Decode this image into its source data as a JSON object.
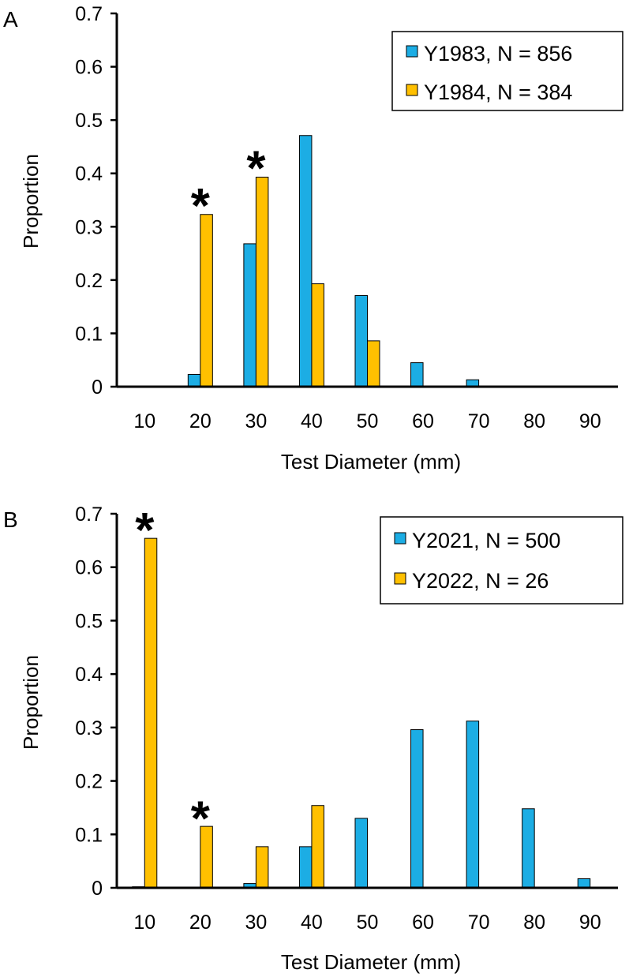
{
  "colors": {
    "series_a": "#1CADE4",
    "series_b": "#FFC000",
    "stroke": "#000000"
  },
  "chart_data": [
    {
      "panel": "A",
      "type": "bar",
      "xlabel": "Test Diameter (mm)",
      "ylabel": "Proportion",
      "ylim": [
        0,
        0.7
      ],
      "yticks": [
        "0",
        "0.1",
        "0.2",
        "0.3",
        "0.4",
        "0.5",
        "0.6",
        "0.7"
      ],
      "categories": [
        "10",
        "20",
        "30",
        "40",
        "50",
        "60",
        "70",
        "80",
        "90"
      ],
      "series": [
        {
          "name": "Y1983, N = 856",
          "values": [
            0,
            0.023,
            0.268,
            0.471,
            0.171,
            0.045,
            0.013,
            0,
            0
          ]
        },
        {
          "name": "Y1984, N = 384",
          "values": [
            0,
            0.323,
            0.393,
            0.193,
            0.086,
            0,
            0,
            0,
            0
          ]
        }
      ],
      "annotations": [
        {
          "text": "*",
          "category": "20",
          "y": 0.37
        },
        {
          "text": "*",
          "category": "30",
          "y": 0.44
        }
      ],
      "legend_position": "top-right",
      "grid": false
    },
    {
      "panel": "B",
      "type": "bar",
      "xlabel": "Test Diameter (mm)",
      "ylabel": "Proportion",
      "ylim": [
        0,
        0.7
      ],
      "yticks": [
        "0",
        "0.1",
        "0.2",
        "0.3",
        "0.4",
        "0.5",
        "0.6",
        "0.7"
      ],
      "categories": [
        "10",
        "20",
        "30",
        "40",
        "50",
        "60",
        "70",
        "80",
        "90"
      ],
      "series": [
        {
          "name": "Y2021, N = 500",
          "values": [
            0.002,
            0,
            0.008,
            0.077,
            0.13,
            0.296,
            0.312,
            0.148,
            0.017
          ]
        },
        {
          "name": "Y2022, N = 26",
          "values": [
            0.654,
            0.115,
            0.077,
            0.154,
            0,
            0,
            0,
            0,
            0
          ]
        }
      ],
      "annotations": [
        {
          "text": "*",
          "category": "10",
          "y": 0.7
        },
        {
          "text": "*",
          "category": "20",
          "y": 0.16
        }
      ],
      "legend_position": "top-right",
      "grid": false
    }
  ]
}
